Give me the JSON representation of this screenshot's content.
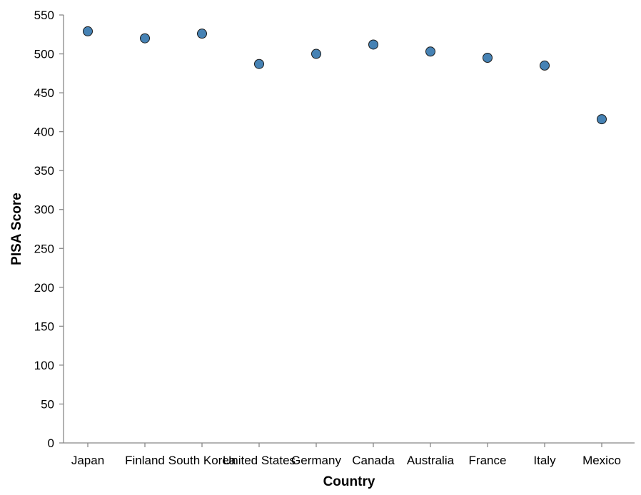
{
  "chart_data": {
    "type": "scatter",
    "xlabel": "Country",
    "ylabel": "PISA Score",
    "categories": [
      "Japan",
      "Finland",
      "South Korea",
      "United States",
      "Germany",
      "Canada",
      "Australia",
      "France",
      "Italy",
      "Mexico"
    ],
    "values": [
      529,
      520,
      526,
      487,
      500,
      512,
      503,
      495,
      485,
      416
    ],
    "ylim": [
      0,
      550
    ],
    "yticks": [
      0,
      50,
      100,
      150,
      200,
      250,
      300,
      350,
      400,
      450,
      500,
      550
    ],
    "grid": false,
    "point_color": "#4682b4"
  }
}
